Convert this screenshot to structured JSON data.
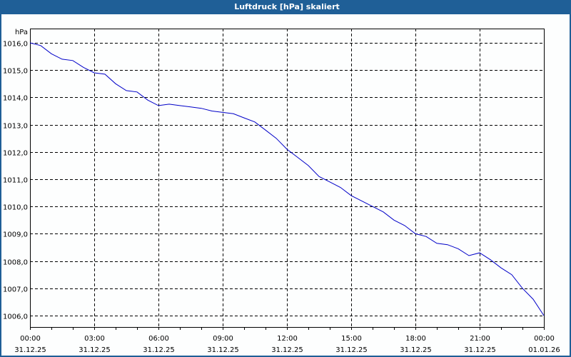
{
  "window": {
    "title": "Luftdruck [hPa] skaliert",
    "title_bg": "#1f5f97",
    "line_color": "#0000c8"
  },
  "chart_data": {
    "type": "line",
    "title": "Luftdruck [hPa] skaliert",
    "xlabel": "",
    "ylabel": "hPa",
    "ylim": [
      1005.6,
      1016.5
    ],
    "xlim_hours": [
      0,
      24
    ],
    "grid": true,
    "legend": null,
    "y_ticks": [
      "1016,0",
      "1015,0",
      "1014,0",
      "1013,0",
      "1012,0",
      "1011,0",
      "1010,0",
      "1009,0",
      "1008,0",
      "1007,0",
      "1006,0"
    ],
    "y_tick_values": [
      1016,
      1015,
      1014,
      1013,
      1012,
      1011,
      1010,
      1009,
      1008,
      1007,
      1006
    ],
    "x_ticks": [
      {
        "time": "00:00",
        "date": "31.12.25",
        "hour": 0
      },
      {
        "time": "03:00",
        "date": "31.12.25",
        "hour": 3
      },
      {
        "time": "06:00",
        "date": "31.12.25",
        "hour": 6
      },
      {
        "time": "09:00",
        "date": "31.12.25",
        "hour": 9
      },
      {
        "time": "12:00",
        "date": "31.12.25",
        "hour": 12
      },
      {
        "time": "15:00",
        "date": "31.12.25",
        "hour": 15
      },
      {
        "time": "18:00",
        "date": "31.12.25",
        "hour": 18
      },
      {
        "time": "21:00",
        "date": "31.12.25",
        "hour": 21
      },
      {
        "time": "00:00",
        "date": "01.01.26",
        "hour": 24
      }
    ],
    "series": [
      {
        "name": "Luftdruck",
        "x_hours": [
          0,
          0.5,
          1,
          1.5,
          2,
          2.5,
          3,
          3.5,
          4,
          4.5,
          5,
          5.5,
          6,
          6.5,
          7,
          7.5,
          8,
          8.5,
          9,
          9.5,
          10,
          10.5,
          11,
          11.5,
          12,
          12.5,
          13,
          13.5,
          14,
          14.5,
          15,
          15.5,
          16,
          16.5,
          17,
          17.5,
          18,
          18.5,
          19,
          19.5,
          20,
          20.5,
          21,
          21.5,
          22,
          22.5,
          23,
          23.5,
          24
        ],
        "values": [
          1016.0,
          1015.9,
          1015.6,
          1015.4,
          1015.35,
          1015.1,
          1014.9,
          1014.85,
          1014.5,
          1014.25,
          1014.2,
          1013.9,
          1013.7,
          1013.75,
          1013.7,
          1013.65,
          1013.6,
          1013.5,
          1013.45,
          1013.4,
          1013.25,
          1013.1,
          1012.8,
          1012.5,
          1012.1,
          1011.8,
          1011.5,
          1011.1,
          1010.9,
          1010.7,
          1010.4,
          1010.2,
          1010.0,
          1009.8,
          1009.5,
          1009.3,
          1009.0,
          1008.9,
          1008.65,
          1008.6,
          1008.45,
          1008.2,
          1008.3,
          1008.05,
          1007.75,
          1007.5,
          1007.0,
          1006.6,
          1006.0
        ]
      }
    ]
  }
}
